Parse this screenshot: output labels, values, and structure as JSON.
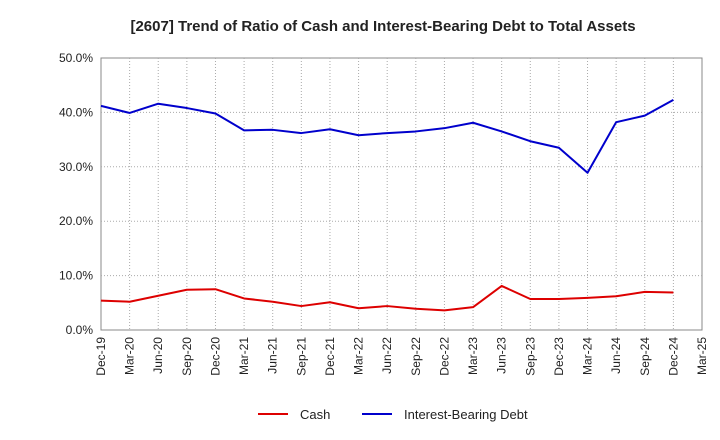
{
  "chart_data": {
    "type": "line",
    "title": "[2607]  Trend of Ratio of Cash and Interest-Bearing Debt to Total Assets",
    "xlabel": "",
    "ylabel": "",
    "x": [
      "Dec-19",
      "Mar-20",
      "Jun-20",
      "Sep-20",
      "Dec-20",
      "Mar-21",
      "Jun-21",
      "Sep-21",
      "Dec-21",
      "Mar-22",
      "Jun-22",
      "Sep-22",
      "Dec-22",
      "Mar-23",
      "Jun-23",
      "Sep-23",
      "Dec-23",
      "Mar-24",
      "Jun-24",
      "Sep-24",
      "Dec-24",
      "Mar-25"
    ],
    "ylim": [
      0,
      50
    ],
    "yticks": [
      "0.0%",
      "10.0%",
      "20.0%",
      "30.0%",
      "40.0%",
      "50.0%"
    ],
    "ytick_values": [
      0,
      10,
      20,
      30,
      40,
      50
    ],
    "grid": true,
    "legend_position": "bottom",
    "series": [
      {
        "name": "Cash",
        "color": "#dd0000",
        "values": [
          5.4,
          5.2,
          6.3,
          7.4,
          7.5,
          5.8,
          5.2,
          4.4,
          5.1,
          4.0,
          4.4,
          3.9,
          3.6,
          4.2,
          8.1,
          5.7,
          5.7,
          5.9,
          6.2,
          7.0,
          6.9,
          null
        ]
      },
      {
        "name": "Interest-Bearing Debt",
        "color": "#0000cc",
        "values": [
          41.2,
          39.9,
          41.6,
          40.8,
          39.8,
          36.7,
          36.8,
          36.2,
          36.9,
          35.8,
          36.2,
          36.5,
          37.1,
          38.1,
          36.5,
          34.7,
          33.5,
          28.9,
          38.2,
          39.4,
          42.3,
          null
        ]
      }
    ]
  }
}
